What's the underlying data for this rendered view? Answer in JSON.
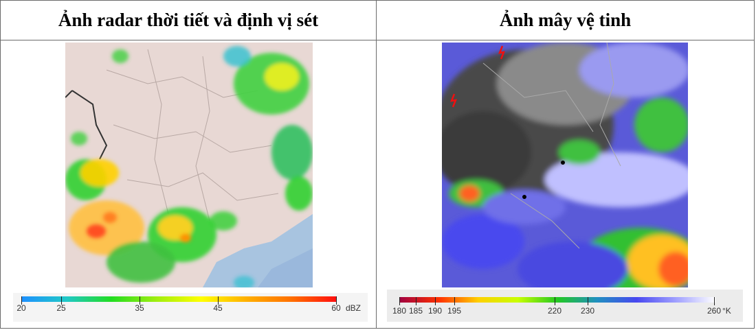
{
  "headers": {
    "left_title": "Ảnh radar thời tiết và định vị sét",
    "right_title": "Ảnh mây vệ tinh"
  },
  "radar_legend": {
    "ticks": [
      "20",
      "25",
      "35",
      "45",
      "60"
    ],
    "unit": "dBZ",
    "colors": [
      "#1e90ff",
      "#20c8c8",
      "#22dd22",
      "#a0ee10",
      "#ffff00",
      "#ffb000",
      "#ff7000",
      "#ff1010"
    ]
  },
  "satellite_legend": {
    "ticks": [
      "180",
      "185",
      "190",
      "195",
      "220",
      "230",
      "260"
    ],
    "unit": "°K",
    "colors": [
      "#a00040",
      "#ff3000",
      "#ffd000",
      "#c8ff00",
      "#22c822",
      "#2090c0",
      "#4848f0",
      "#a0a0ff",
      "#ffffff"
    ]
  }
}
